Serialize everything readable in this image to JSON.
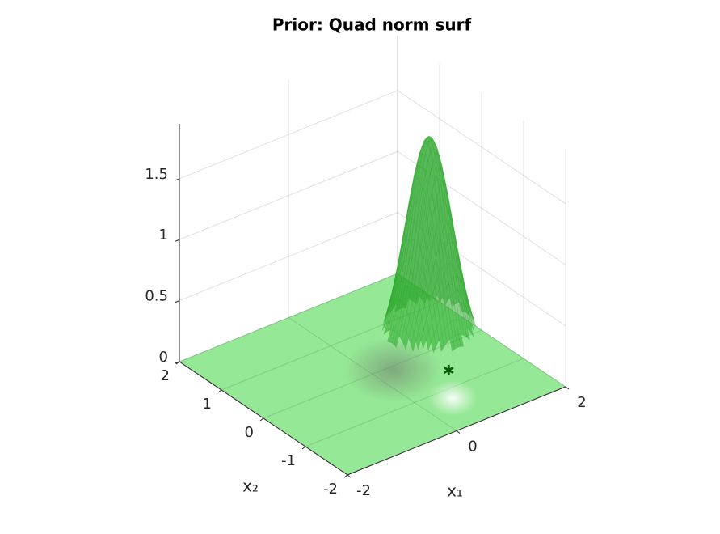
{
  "chart_data": {
    "type": "surface3d",
    "title": "Prior: Quad norm surf",
    "xlabel": "x₁",
    "ylabel": "x₂",
    "xlim": [
      -2,
      2
    ],
    "ylim": [
      -2,
      2
    ],
    "zlim": [
      0,
      1.95
    ],
    "xticks": [
      -2,
      0,
      2
    ],
    "yticks": [
      -2,
      -1,
      0,
      1,
      2
    ],
    "zticks": [
      0,
      0.5,
      1,
      1.5
    ],
    "grid": true,
    "floor_color": "#95e895",
    "surface": {
      "color": "#2ea82e",
      "center": [
        0.86,
        -0.23
      ],
      "peak": 1.85,
      "sigma": 0.35,
      "cutoff": 0.25
    },
    "marker": {
      "x": 0.92,
      "y": -0.62,
      "color": "#0b5a0b"
    }
  }
}
